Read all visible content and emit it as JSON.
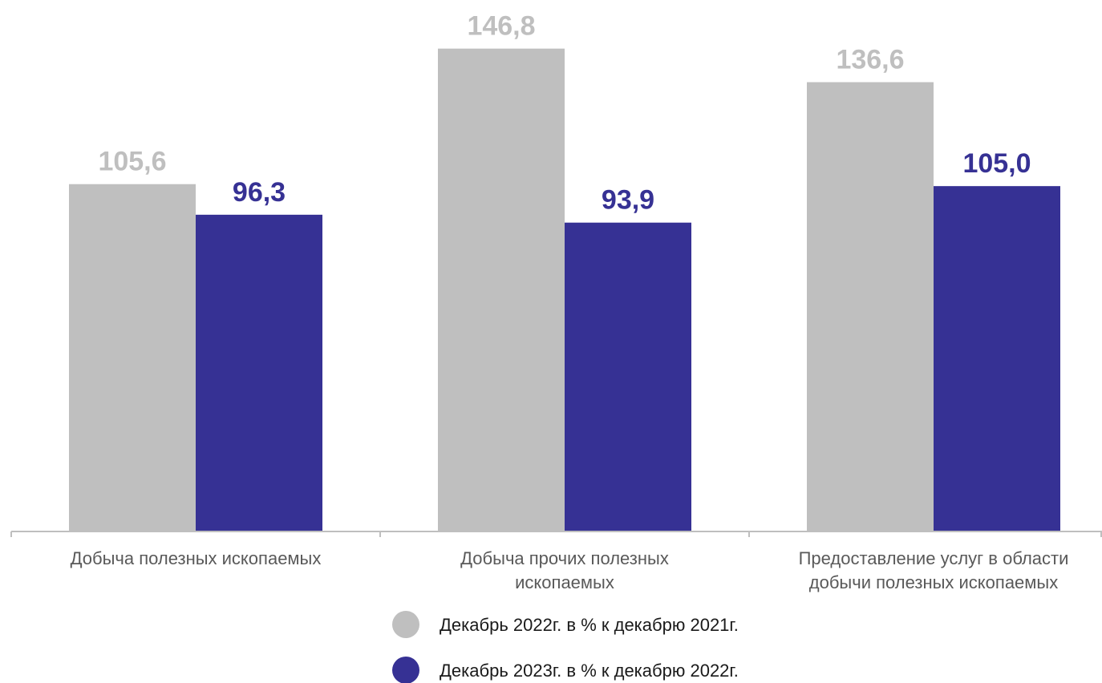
{
  "chart_data": {
    "type": "bar",
    "categories": [
      [
        "Добыча полезных ископаемых"
      ],
      [
        "Добыча прочих полезных",
        "ископаемых"
      ],
      [
        "Предоставление услуг в области",
        "добычи полезных ископаемых"
      ]
    ],
    "series": [
      {
        "name": "Декабрь 2022г. в % к декабрю 2021г.",
        "values": [
          "105,6",
          "146,8",
          "136,6"
        ],
        "color": "#bfbfbf"
      },
      {
        "name": "Декабрь 2023г. в % к декабрю 2022г.",
        "values": [
          "96,3",
          "93,9",
          "105,0"
        ],
        "color": "#363194"
      }
    ],
    "ylim": [
      0,
      155
    ],
    "grid": false,
    "legend_position": "bottom"
  }
}
